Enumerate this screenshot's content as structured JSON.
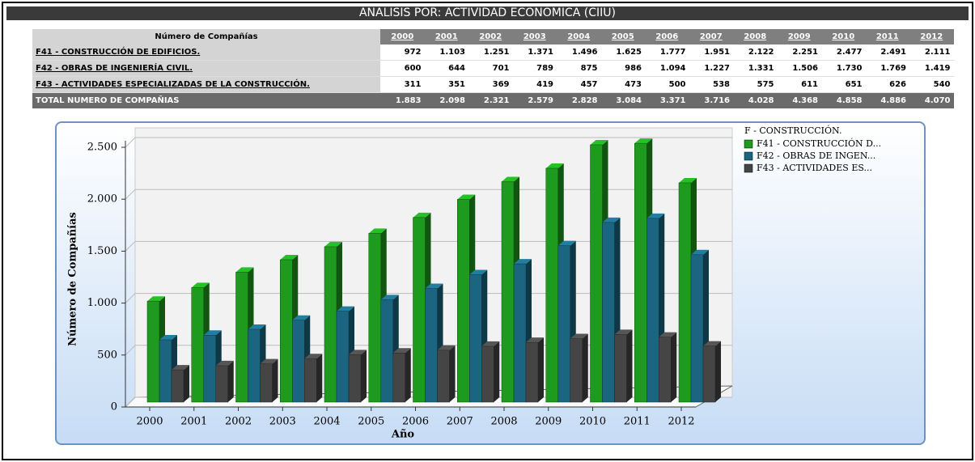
{
  "header": {
    "title": "ANALISIS POR: ACTIVIDAD ECONOMICA (CIIU)"
  },
  "table": {
    "header": [
      "Número de Compañías",
      "2000",
      "2001",
      "2002",
      "2003",
      "2004",
      "2005",
      "2006",
      "2007",
      "2008",
      "2009",
      "2010",
      "2011",
      "2012"
    ],
    "rows": [
      [
        "F41 - CONSTRUCCIÓN DE EDIFICIOS.",
        "972",
        "1.103",
        "1.251",
        "1.371",
        "1.496",
        "1.625",
        "1.777",
        "1.951",
        "2.122",
        "2.251",
        "2.477",
        "2.491",
        "2.111"
      ],
      [
        "F42 - OBRAS DE INGENIERÍA CIVIL.",
        "600",
        "644",
        "701",
        "789",
        "875",
        "986",
        "1.094",
        "1.227",
        "1.331",
        "1.506",
        "1.730",
        "1.769",
        "1.419"
      ],
      [
        "F43 - ACTIVIDADES ESPECIALIZADAS DE LA CONSTRUCCIÓN.",
        "311",
        "351",
        "369",
        "419",
        "457",
        "473",
        "500",
        "538",
        "575",
        "611",
        "651",
        "626",
        "540"
      ]
    ],
    "total": [
      "TOTAL NUMERO DE COMPAÑIAS",
      "1.883",
      "2.098",
      "2.321",
      "2.579",
      "2.828",
      "3.084",
      "3.371",
      "3.716",
      "4.028",
      "4.368",
      "4.858",
      "4.886",
      "4.070"
    ]
  },
  "chart_data": {
    "type": "bar3d",
    "x_label": "Año",
    "y_label": "Número de Compañías",
    "legend_title": "F - CONSTRUCCIÓN.",
    "categories": [
      "2000",
      "2001",
      "2002",
      "2003",
      "2004",
      "2005",
      "2006",
      "2007",
      "2008",
      "2009",
      "2010",
      "2011",
      "2012"
    ],
    "series": [
      {
        "name": "F41 - CONSTRUCCIÓN D...",
        "color": "#1e9a1e",
        "values": [
          972,
          1103,
          1251,
          1371,
          1496,
          1625,
          1777,
          1951,
          2122,
          2251,
          2477,
          2491,
          2111
        ]
      },
      {
        "name": "F42 - OBRAS DE INGEN...",
        "color": "#1b6580",
        "values": [
          600,
          644,
          701,
          789,
          875,
          986,
          1094,
          1227,
          1331,
          1506,
          1730,
          1769,
          1419
        ]
      },
      {
        "name": "F43 - ACTIVIDADES ES...",
        "color": "#454545",
        "values": [
          311,
          351,
          369,
          419,
          457,
          473,
          500,
          538,
          575,
          611,
          651,
          626,
          540
        ]
      }
    ],
    "ylim": [
      0,
      2500
    ],
    "yticks": [
      0,
      500,
      {
        "value": 1000,
        "label": "1.000"
      },
      {
        "value": 1500,
        "label": "1.500"
      },
      {
        "value": 2000,
        "label": "2.000"
      },
      {
        "value": 2500,
        "label": "2.500"
      }
    ],
    "grid": true
  }
}
